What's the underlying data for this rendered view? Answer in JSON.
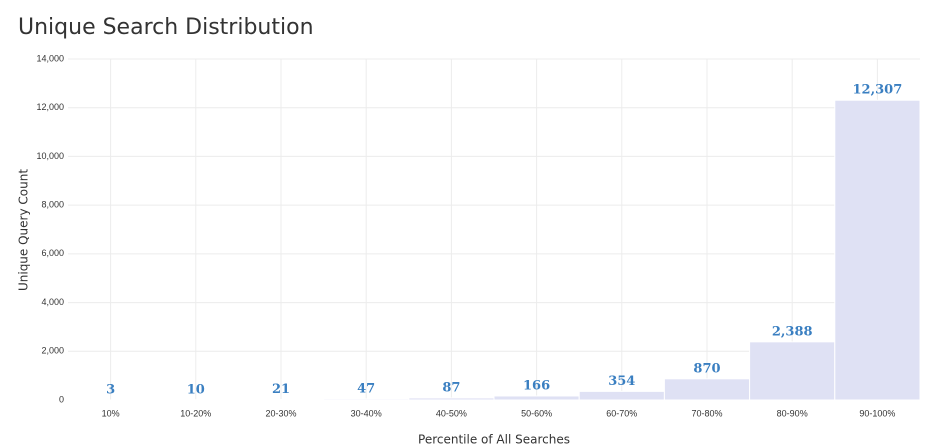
{
  "chart_data": {
    "type": "bar",
    "title": "Unique Search Distribution",
    "x_label": "Percentile of All Searches",
    "y_label": "Unique Query Count",
    "categories": [
      "10%",
      "10-20%",
      "20-30%",
      "30-40%",
      "40-50%",
      "50-60%",
      "60-70%",
      "70-80%",
      "80-90%",
      "90-100%"
    ],
    "values": [
      3,
      10,
      21,
      47,
      87,
      166,
      354,
      870,
      2388,
      12307
    ],
    "value_labels": [
      "3",
      "10",
      "21",
      "47",
      "87",
      "166",
      "354",
      "870",
      "2,388",
      "12,307"
    ],
    "color": "#dfe1f4",
    "ylim": [
      0,
      14000
    ],
    "yticks": [
      0,
      {
        "value": 2000,
        "label": "2,000"
      },
      {
        "value": 4000,
        "label": "4,000"
      },
      {
        "value": 6000,
        "label": "6,000"
      },
      {
        "value": 8000,
        "label": "8,000"
      },
      {
        "value": 10000,
        "label": "10,000"
      },
      {
        "value": 12000,
        "label": "12,000"
      },
      {
        "value": 14000,
        "label": "14,000"
      }
    ],
    "grid": true
  }
}
